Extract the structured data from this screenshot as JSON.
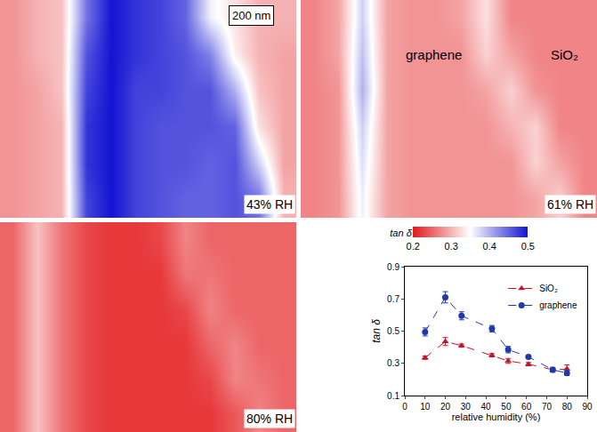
{
  "chart_data": [
    {
      "type": "heatmap",
      "tick_labels": false,
      "colorbar": {
        "range": [
          0.2,
          0.5
        ],
        "ticks": [
          0.2,
          0.3,
          0.4,
          0.5
        ],
        "title": "tan δ"
      },
      "panels": [
        {
          "label": "43% RH",
          "annotations": [
            "200 nm"
          ],
          "cells": [
            [
              0.28,
              0.3,
              0.31,
              0.44,
              0.5,
              0.48,
              0.47,
              0.45,
              0.36,
              0.33,
              0.3,
              0.3
            ],
            [
              0.28,
              0.3,
              0.31,
              0.46,
              0.5,
              0.48,
              0.47,
              0.46,
              0.43,
              0.34,
              0.3,
              0.29
            ],
            [
              0.28,
              0.29,
              0.31,
              0.47,
              0.5,
              0.47,
              0.47,
              0.46,
              0.46,
              0.4,
              0.31,
              0.29
            ],
            [
              0.28,
              0.29,
              0.3,
              0.48,
              0.5,
              0.47,
              0.46,
              0.46,
              0.46,
              0.45,
              0.33,
              0.29
            ],
            [
              0.28,
              0.29,
              0.3,
              0.48,
              0.5,
              0.47,
              0.46,
              0.46,
              0.45,
              0.46,
              0.38,
              0.29
            ],
            [
              0.28,
              0.29,
              0.3,
              0.47,
              0.5,
              0.47,
              0.46,
              0.45,
              0.45,
              0.46,
              0.44,
              0.3
            ]
          ]
        },
        {
          "label": "61% RH",
          "annotations": [
            "graphene",
            "SiO₂"
          ],
          "cells": [
            [
              0.27,
              0.29,
              0.38,
              0.29,
              0.28,
              0.28,
              0.29,
              0.33,
              0.27,
              0.27,
              0.27,
              0.27
            ],
            [
              0.27,
              0.29,
              0.39,
              0.29,
              0.28,
              0.28,
              0.28,
              0.32,
              0.29,
              0.27,
              0.27,
              0.27
            ],
            [
              0.27,
              0.28,
              0.4,
              0.29,
              0.28,
              0.28,
              0.28,
              0.29,
              0.32,
              0.28,
              0.27,
              0.27
            ],
            [
              0.27,
              0.28,
              0.38,
              0.29,
              0.28,
              0.28,
              0.28,
              0.28,
              0.3,
              0.32,
              0.27,
              0.27
            ],
            [
              0.27,
              0.28,
              0.37,
              0.29,
              0.28,
              0.28,
              0.28,
              0.28,
              0.28,
              0.32,
              0.29,
              0.27
            ],
            [
              0.27,
              0.28,
              0.36,
              0.29,
              0.28,
              0.28,
              0.28,
              0.28,
              0.28,
              0.29,
              0.32,
              0.27
            ]
          ]
        },
        {
          "label": "80% RH",
          "annotations": [],
          "cells": [
            [
              0.25,
              0.31,
              0.26,
              0.23,
              0.22,
              0.22,
              0.23,
              0.27,
              0.25,
              0.25,
              0.25,
              0.25
            ],
            [
              0.25,
              0.31,
              0.26,
              0.23,
              0.22,
              0.22,
              0.22,
              0.26,
              0.26,
              0.25,
              0.25,
              0.25
            ],
            [
              0.25,
              0.31,
              0.26,
              0.23,
              0.22,
              0.22,
              0.22,
              0.23,
              0.27,
              0.25,
              0.25,
              0.25
            ],
            [
              0.25,
              0.31,
              0.26,
              0.23,
              0.22,
              0.22,
              0.22,
              0.22,
              0.25,
              0.27,
              0.25,
              0.25
            ],
            [
              0.25,
              0.31,
              0.26,
              0.23,
              0.22,
              0.22,
              0.22,
              0.22,
              0.23,
              0.27,
              0.26,
              0.25
            ],
            [
              0.25,
              0.31,
              0.26,
              0.23,
              0.22,
              0.22,
              0.22,
              0.22,
              0.22,
              0.24,
              0.27,
              0.25
            ]
          ]
        }
      ]
    },
    {
      "type": "line",
      "x_label": "relative humidity (%)",
      "y_label": "tan δ",
      "x": [
        10,
        20,
        28,
        43,
        51,
        61,
        73,
        80
      ],
      "series": [
        {
          "name": "SiO₂",
          "color": "#c0142a",
          "marker": "triangle-up",
          "line_style": "dash",
          "values": [
            0.335,
            0.435,
            0.41,
            0.35,
            0.315,
            0.295,
            0.26,
            0.265
          ],
          "errors": [
            0.01,
            0.025,
            0.01,
            0.01,
            0.015,
            0.01,
            0.01,
            0.025
          ]
        },
        {
          "name": "graphene",
          "color": "#1f3aa8",
          "marker": "circle",
          "line_style": "dash",
          "values": [
            0.495,
            0.71,
            0.595,
            0.515,
            0.385,
            0.34,
            0.26,
            0.24
          ],
          "errors": [
            0.025,
            0.035,
            0.025,
            0.02,
            0.02,
            0.01,
            0.015,
            0.015
          ]
        }
      ],
      "xlim": [
        0,
        90
      ],
      "xticks": [
        0,
        10,
        20,
        30,
        40,
        50,
        60,
        70,
        80,
        90
      ],
      "ylim": [
        0.1,
        0.9
      ],
      "yticks": [
        0.1,
        0.3,
        0.5,
        0.7,
        0.9
      ],
      "grid": false,
      "legend": "top right"
    }
  ]
}
